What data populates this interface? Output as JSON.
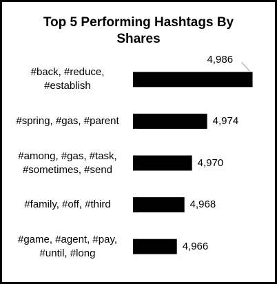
{
  "chart_data": {
    "type": "barh",
    "title": "Top 5 Performing Hashtags By Shares",
    "categories": [
      "#back, #reduce,\n#establish",
      "#spring, #gas, #parent",
      "#among, #gas, #task,\n#sometimes, #send",
      "#family, #off, #third",
      "#game, #agent, #pay,\n#until, #long"
    ],
    "values": [
      4986,
      4974,
      4970,
      4968,
      4966
    ],
    "value_labels": [
      "4,986",
      "4,974",
      "4,970",
      "4,968",
      "4,966"
    ],
    "color": "#000000",
    "xlim": [
      4954.4,
      4989
    ]
  }
}
